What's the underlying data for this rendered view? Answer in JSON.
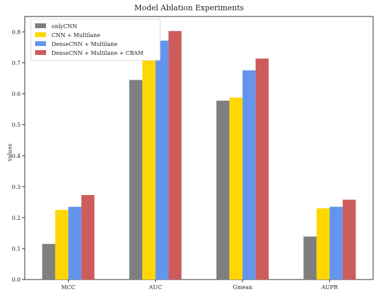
{
  "chart_data": {
    "type": "bar",
    "title": "Model Ablation Experiments",
    "xlabel": "",
    "ylabel": "values",
    "categories": [
      "MCC",
      "AUC",
      "Gmean",
      "AUPR"
    ],
    "ylim": [
      0,
      0.85
    ],
    "yticks": [
      "0.0",
      "0.1",
      "0.2",
      "0.3",
      "0.4",
      "0.5",
      "0.6",
      "0.7",
      "0.8"
    ],
    "legend_position": "top-left",
    "grid": false,
    "series": [
      {
        "name": "onlyCNN",
        "color": "#7f7f7f",
        "values": [
          0.115,
          0.645,
          0.578,
          0.139
        ]
      },
      {
        "name": "CNN + Multilane",
        "color": "#ffd700",
        "values": [
          0.225,
          0.768,
          0.588,
          0.23
        ]
      },
      {
        "name": "DenseCNN + Multilane",
        "color": "#6495ed",
        "values": [
          0.235,
          0.772,
          0.676,
          0.235
        ]
      },
      {
        "name": "DenseCNN + Multilane + CBAM",
        "color": "#cd5c5c",
        "values": [
          0.273,
          0.803,
          0.714,
          0.258
        ]
      }
    ]
  }
}
